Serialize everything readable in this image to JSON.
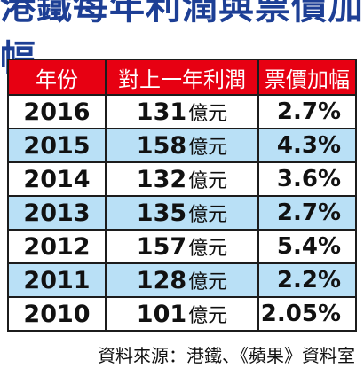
{
  "title": "港鐵每年利潤與票價加幅",
  "headers": [
    "年份",
    "對上一年利潤",
    "票價加幅"
  ],
  "unit": "億元",
  "rows": [
    {
      "year": "2016",
      "profit": "131",
      "fare_increase": "2.7%"
    },
    {
      "year": "2015",
      "profit": "158",
      "fare_increase": "4.3%"
    },
    {
      "year": "2014",
      "profit": "132",
      "fare_increase": "3.6%"
    },
    {
      "year": "2013",
      "profit": "135",
      "fare_increase": "2.7%"
    },
    {
      "year": "2012",
      "profit": "157",
      "fare_increase": "5.4%"
    },
    {
      "year": "2011",
      "profit": "128",
      "fare_increase": "2.2%"
    },
    {
      "year": "2010",
      "profit": "101",
      "fare_increase": "2.05%"
    }
  ],
  "source": "資料來源：港鐵、《蘋果》資料室",
  "colors": {
    "title": "#1d3f95",
    "header_bg": "#e70012",
    "stripe": "#b9e0f6"
  },
  "chart_data": {
    "type": "table",
    "title": "港鐵每年利潤與票價加幅",
    "columns": [
      "年份",
      "對上一年利潤",
      "票價加幅"
    ],
    "rows": [
      [
        "2016",
        "131億元",
        "2.7%"
      ],
      [
        "2015",
        "158億元",
        "4.3%"
      ],
      [
        "2014",
        "132億元",
        "3.6%"
      ],
      [
        "2013",
        "135億元",
        "2.7%"
      ],
      [
        "2012",
        "157億元",
        "5.4%"
      ],
      [
        "2011",
        "128億元",
        "2.2%"
      ],
      [
        "2010",
        "101億元",
        "2.05%"
      ]
    ]
  }
}
